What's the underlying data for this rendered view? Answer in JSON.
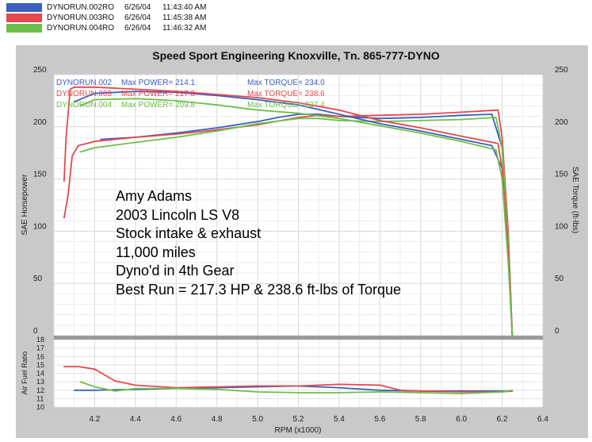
{
  "legend": [
    {
      "name": "DYNORUN.002RO",
      "date": "6/26/04",
      "time": "11:43:40 AM",
      "color": "#3a5fbf"
    },
    {
      "name": "DYNORUN.003RO",
      "date": "6/26/04",
      "time": "11:45:38 AM",
      "color": "#e5484d"
    },
    {
      "name": "DYNORUN.004RO",
      "date": "6/26/04",
      "time": "11:46:32 AM",
      "color": "#6cc04a"
    }
  ],
  "title": "Speed Sport Engineering Knoxville, Tn. 865-777-DYNO",
  "notes": [
    "Amy Adams",
    "2003 Lincoln LS V8",
    "Stock intake & exhaust",
    "11,000 miles",
    "Dyno'd in 4th Gear",
    "Best Run = 217.3 HP & 238.6 ft-lbs of Torque"
  ],
  "run_labels": [
    {
      "run": "DYNORUN.002",
      "power": "Max POWER= 214.1",
      "torque": "Max TORQUE= 234.0",
      "color": "#3a5fbf"
    },
    {
      "run": "DYNORUN.003",
      "power": "Max POWER= 217.3",
      "torque": "Max TORQUE= 238.6",
      "color": "#e5484d"
    },
    {
      "run": "DYNORUN.004",
      "power": "Max POWER= 209.8",
      "torque": "Max TORQUE= 227.4",
      "color": "#6cc04a"
    }
  ],
  "chart_data": [
    {
      "type": "line",
      "title": "",
      "xlabel": "RPM (x1000)",
      "ylabel": "SAE Horsepower",
      "y2label": "SAE Torque (ft-lbs)",
      "xlim": [
        4.0,
        6.4
      ],
      "ylim": [
        0,
        250
      ],
      "yticks": [
        0,
        50,
        100,
        150,
        200,
        250
      ],
      "grid": true,
      "series": [
        {
          "name": "DYNORUN.002",
          "kind": "power",
          "color": "#3a5fbf",
          "x": [
            4.23,
            4.4,
            4.6,
            4.8,
            5.0,
            5.1,
            5.2,
            5.3,
            5.4,
            5.6,
            5.8,
            6.0,
            6.15,
            6.2,
            6.23,
            6.25
          ],
          "y": [
            188,
            190,
            194,
            199,
            205,
            209,
            212,
            212,
            210,
            208,
            209,
            211,
            212,
            180,
            90,
            0
          ]
        },
        {
          "name": "DYNORUN.003",
          "kind": "power",
          "color": "#e5484d",
          "x": [
            4.05,
            4.07,
            4.09,
            4.12,
            4.2,
            4.4,
            4.6,
            4.8,
            5.0,
            5.2,
            5.3,
            5.4,
            5.6,
            5.8,
            6.0,
            6.18,
            6.2,
            6.23,
            6.25
          ],
          "y": [
            113,
            135,
            172,
            182,
            186,
            190,
            193,
            197,
            202,
            209,
            211,
            210,
            211,
            212,
            214,
            216,
            190,
            100,
            0
          ]
        },
        {
          "name": "DYNORUN.004",
          "kind": "power",
          "color": "#6cc04a",
          "x": [
            4.13,
            4.2,
            4.4,
            4.6,
            4.8,
            5.0,
            5.2,
            5.3,
            5.4,
            5.6,
            5.8,
            6.0,
            6.17,
            6.2,
            6.23,
            6.25
          ],
          "y": [
            176,
            180,
            185,
            190,
            196,
            203,
            208,
            208,
            206,
            205,
            206,
            207,
            209,
            180,
            90,
            0
          ]
        },
        {
          "name": "DYNORUN.002",
          "kind": "torque",
          "color": "#3a5fbf",
          "x": [
            4.1,
            4.2,
            4.4,
            4.6,
            4.8,
            5.0,
            5.2,
            5.4,
            5.6,
            5.8,
            6.0,
            6.15,
            6.2,
            6.23,
            6.25
          ],
          "y": [
            224,
            232,
            234,
            233,
            230,
            226,
            221,
            212,
            203,
            196,
            188,
            182,
            160,
            80,
            0
          ]
        },
        {
          "name": "DYNORUN.003",
          "kind": "torque",
          "color": "#e5484d",
          "x": [
            4.05,
            4.06,
            4.08,
            4.1,
            4.2,
            4.4,
            4.6,
            4.8,
            5.0,
            5.2,
            5.4,
            5.6,
            5.8,
            6.0,
            6.18,
            6.2,
            6.23,
            6.25
          ],
          "y": [
            148,
            190,
            236,
            238,
            238,
            236,
            234,
            231,
            228,
            223,
            216,
            206,
            199,
            191,
            184,
            160,
            80,
            0
          ]
        },
        {
          "name": "DYNORUN.004",
          "kind": "torque",
          "color": "#6cc04a",
          "x": [
            4.13,
            4.2,
            4.4,
            4.6,
            4.8,
            5.0,
            5.2,
            5.4,
            5.6,
            5.8,
            6.0,
            6.17,
            6.2,
            6.23,
            6.25
          ],
          "y": [
            220,
            226,
            227,
            225,
            221,
            216,
            213,
            208,
            201,
            194,
            186,
            178,
            150,
            70,
            0
          ]
        }
      ]
    },
    {
      "type": "line",
      "title": "",
      "xlabel": "RPM (x1000)",
      "ylabel": "Air Fuel Ratio",
      "xlim": [
        4.0,
        6.4
      ],
      "ylim": [
        10,
        18
      ],
      "yticks": [
        10,
        11,
        12,
        13,
        14,
        15,
        16,
        17,
        18
      ],
      "xticks": [
        "4.2",
        "4.4",
        "4.6",
        "4.8",
        "5.0",
        "5.2",
        "5.4",
        "5.6",
        "5.8",
        "6.0",
        "6.2",
        "6.4"
      ],
      "grid": true,
      "series": [
        {
          "name": "DYNORUN.002",
          "color": "#3a5fbf",
          "x": [
            4.1,
            4.2,
            4.4,
            4.6,
            4.8,
            5.0,
            5.2,
            5.4,
            5.6,
            5.8,
            6.0,
            6.2,
            6.25
          ],
          "y": [
            12.0,
            12.0,
            12.1,
            12.2,
            12.3,
            12.4,
            12.5,
            12.3,
            12.0,
            11.9,
            11.9,
            11.9,
            11.9
          ]
        },
        {
          "name": "DYNORUN.003",
          "color": "#e5484d",
          "x": [
            4.05,
            4.12,
            4.2,
            4.3,
            4.4,
            4.6,
            4.8,
            5.0,
            5.2,
            5.4,
            5.6,
            5.7,
            5.8,
            6.0,
            6.2,
            6.25
          ],
          "y": [
            14.8,
            14.8,
            14.5,
            13.1,
            12.6,
            12.3,
            12.4,
            12.5,
            12.5,
            12.7,
            12.6,
            12.0,
            11.9,
            11.8,
            11.8,
            11.9
          ]
        },
        {
          "name": "DYNORUN.004",
          "color": "#6cc04a",
          "x": [
            4.13,
            4.2,
            4.3,
            4.4,
            4.6,
            4.8,
            5.0,
            5.2,
            5.4,
            5.6,
            5.8,
            6.0,
            6.2,
            6.25
          ],
          "y": [
            13.0,
            12.4,
            11.9,
            12.2,
            12.2,
            12.1,
            11.8,
            11.7,
            11.7,
            11.8,
            11.7,
            11.6,
            11.8,
            12.0
          ]
        }
      ]
    }
  ]
}
